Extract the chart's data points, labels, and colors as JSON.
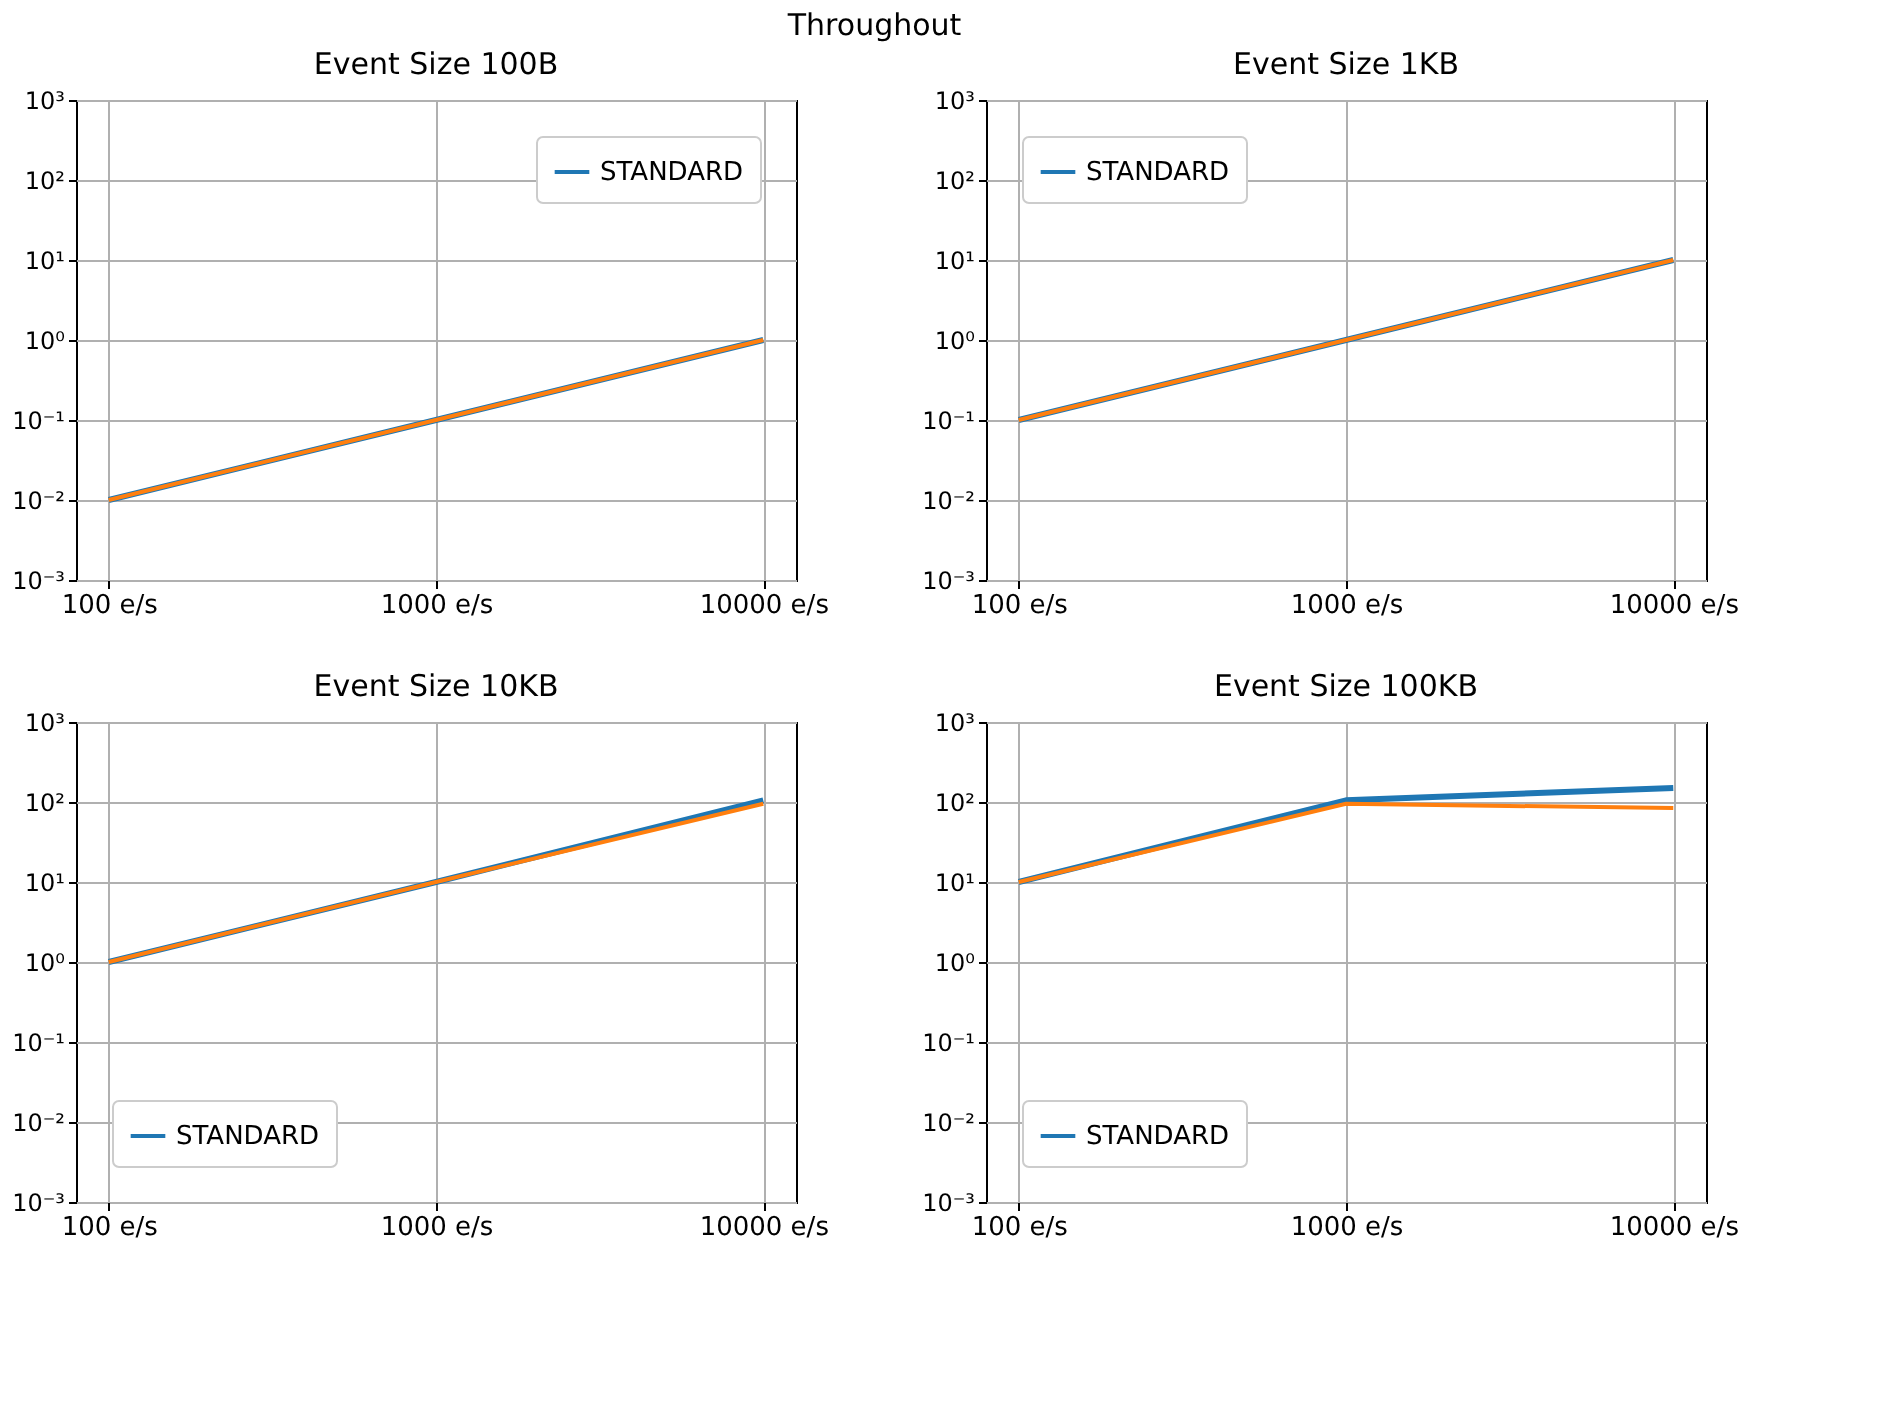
{
  "chart_data": [
    {
      "type": "line",
      "title": "Throughout",
      "subtitle": "Event Size 100B",
      "categories": [
        "100 e/s",
        "1000 e/s",
        "10000 e/s"
      ],
      "log": true,
      "grid": true,
      "legend": "top right",
      "ylim": [
        0.001,
        1000
      ],
      "yticks": [
        {
          "value": 0.001,
          "label": "10⁻³"
        },
        {
          "value": 0.01,
          "label": "10⁻²"
        },
        {
          "value": 0.1,
          "label": "10⁻¹"
        },
        {
          "value": 1,
          "label": "10⁰"
        },
        {
          "value": 10,
          "label": "10¹"
        },
        {
          "value": 100,
          "label": "10²"
        },
        {
          "value": 1000,
          "label": "10³"
        }
      ],
      "series": [
        {
          "name": "STANDARD",
          "color": "#1f77b4",
          "values": [
            0.01,
            0.1,
            1
          ]
        },
        {
          "color": "#ff7f0e",
          "values": [
            0.01,
            0.1,
            1
          ]
        }
      ]
    },
    {
      "type": "line",
      "subtitle": "Event Size 1KB",
      "categories": [
        "100 e/s",
        "1000 e/s",
        "10000 e/s"
      ],
      "log": true,
      "grid": true,
      "legend": "top left",
      "ylim": [
        0.001,
        1000
      ],
      "yticks": [
        {
          "value": 0.001,
          "label": "10⁻³"
        },
        {
          "value": 0.01,
          "label": "10⁻²"
        },
        {
          "value": 0.1,
          "label": "10⁻¹"
        },
        {
          "value": 1,
          "label": "10⁰"
        },
        {
          "value": 10,
          "label": "10¹"
        },
        {
          "value": 100,
          "label": "10²"
        },
        {
          "value": 1000,
          "label": "10³"
        }
      ],
      "series": [
        {
          "name": "STANDARD",
          "color": "#1f77b4",
          "values": [
            0.1,
            1,
            10
          ]
        },
        {
          "color": "#ff7f0e",
          "values": [
            0.1,
            1,
            10
          ]
        }
      ]
    },
    {
      "type": "line",
      "subtitle": "Event Size 10KB",
      "categories": [
        "100 e/s",
        "1000 e/s",
        "10000 e/s"
      ],
      "log": true,
      "grid": true,
      "legend": "bottom left",
      "ylim": [
        0.001,
        1000
      ],
      "yticks": [
        {
          "value": 0.001,
          "label": "10⁻³"
        },
        {
          "value": 0.01,
          "label": "10⁻²"
        },
        {
          "value": 0.1,
          "label": "10⁻¹"
        },
        {
          "value": 1,
          "label": "10⁰"
        },
        {
          "value": 10,
          "label": "10¹"
        },
        {
          "value": 100,
          "label": "10²"
        },
        {
          "value": 1000,
          "label": "10³"
        }
      ],
      "series": [
        {
          "name": "STANDARD",
          "color": "#1f77b4",
          "values": [
            1,
            10,
            105
          ]
        },
        {
          "color": "#ff7f0e",
          "values": [
            1,
            10,
            95
          ]
        }
      ]
    },
    {
      "type": "line",
      "subtitle": "Event Size 100KB",
      "categories": [
        "100 e/s",
        "1000 e/s",
        "10000 e/s"
      ],
      "log": true,
      "grid": true,
      "legend": "bottom left",
      "ylim": [
        0.001,
        1000
      ],
      "yticks": [
        {
          "value": 0.001,
          "label": "10⁻³"
        },
        {
          "value": 0.01,
          "label": "10⁻²"
        },
        {
          "value": 0.1,
          "label": "10⁻¹"
        },
        {
          "value": 1,
          "label": "10⁰"
        },
        {
          "value": 10,
          "label": "10¹"
        },
        {
          "value": 100,
          "label": "10²"
        },
        {
          "value": 1000,
          "label": "10³"
        }
      ],
      "series": [
        {
          "name": "STANDARD",
          "color": "#1f77b4",
          "values": [
            10,
            105,
            150
          ]
        },
        {
          "color": "#ff7f0e",
          "values": [
            10,
            95,
            84
          ]
        }
      ]
    }
  ]
}
